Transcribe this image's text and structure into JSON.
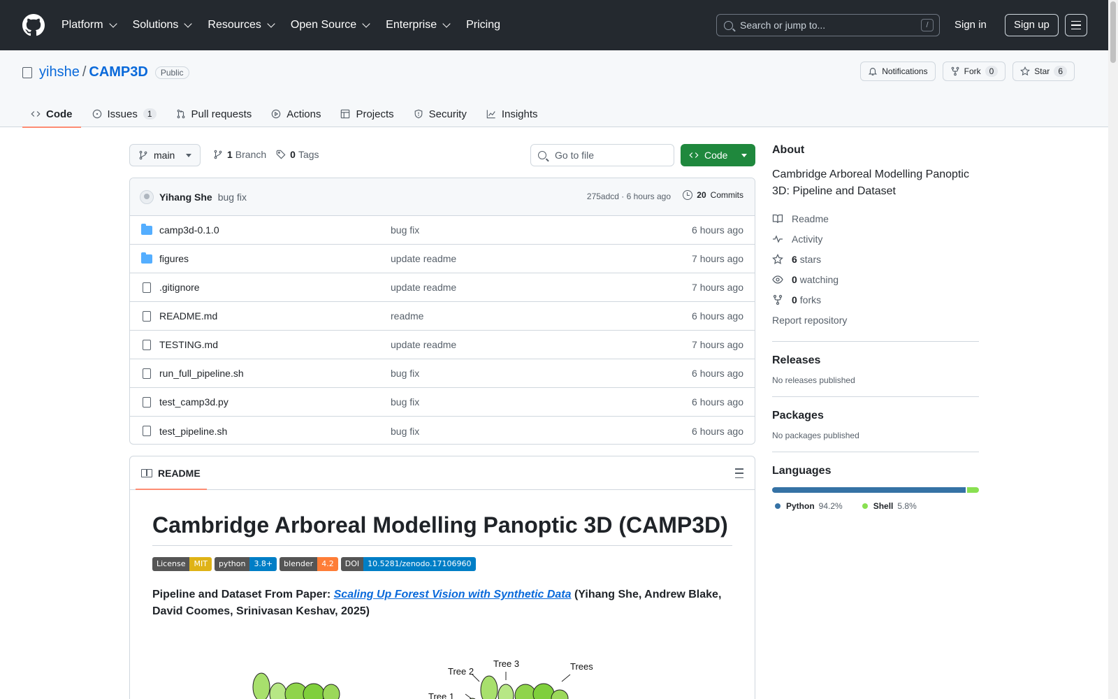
{
  "header": {
    "nav": [
      "Platform",
      "Solutions",
      "Resources",
      "Open Source",
      "Enterprise",
      "Pricing"
    ],
    "search_placeholder": "Search or jump to...",
    "search_key": "/",
    "sign_in": "Sign in",
    "sign_up": "Sign up"
  },
  "repo": {
    "owner": "yihshe",
    "separator": "/",
    "name": "CAMP3D",
    "visibility": "Public",
    "notifications": "Notifications",
    "fork_label": "Fork",
    "fork_count": "0",
    "star_label": "Star",
    "star_count": "6"
  },
  "tabs": [
    {
      "label": "Code",
      "icon": "code-icon"
    },
    {
      "label": "Issues",
      "count": "1",
      "icon": "issue-icon"
    },
    {
      "label": "Pull requests",
      "icon": "pull-request-icon"
    },
    {
      "label": "Actions",
      "icon": "play-icon"
    },
    {
      "label": "Projects",
      "icon": "table-icon"
    },
    {
      "label": "Security",
      "icon": "shield-icon"
    },
    {
      "label": "Insights",
      "icon": "graph-icon"
    }
  ],
  "toolbar": {
    "branch": "main",
    "branch_count": "1",
    "branch_label": "Branch",
    "tag_count": "0",
    "tag_label": "Tags",
    "goto_placeholder": "Go to file",
    "code_button": "Code"
  },
  "commit": {
    "author": "Yihang She",
    "message": "bug fix",
    "meta": "275adcd · 6 hours ago",
    "commits_count": "20",
    "commits_label": "Commits"
  },
  "files": [
    {
      "name": "camp3d-0.1.0",
      "type": "folder",
      "message": "bug fix",
      "time": "6 hours ago"
    },
    {
      "name": "figures",
      "type": "folder",
      "message": "update readme",
      "time": "7 hours ago"
    },
    {
      "name": ".gitignore",
      "type": "file",
      "message": "update readme",
      "time": "7 hours ago"
    },
    {
      "name": "README.md",
      "type": "file",
      "message": "readme",
      "time": "6 hours ago"
    },
    {
      "name": "TESTING.md",
      "type": "file",
      "message": "update readme",
      "time": "7 hours ago"
    },
    {
      "name": "run_full_pipeline.sh",
      "type": "file",
      "message": "bug fix",
      "time": "6 hours ago"
    },
    {
      "name": "test_camp3d.py",
      "type": "file",
      "message": "bug fix",
      "time": "6 hours ago"
    },
    {
      "name": "test_pipeline.sh",
      "type": "file",
      "message": "bug fix",
      "time": "6 hours ago"
    }
  ],
  "readme": {
    "tab_label": "README",
    "title": "Cambridge Arboreal Modelling Panoptic 3D (CAMP3D)",
    "badges": [
      {
        "left": "License",
        "right": "MIT",
        "color": "#dfb317"
      },
      {
        "left": "python",
        "right": "3.8+",
        "color": "#007ec6"
      },
      {
        "left": "blender",
        "right": "4.2",
        "color": "#fe7d37"
      },
      {
        "left": "DOI",
        "right": "10.5281/zenodo.17106960",
        "color": "#007ec6"
      }
    ],
    "paper_prefix": "Pipeline and Dataset From Paper: ",
    "paper_link": "Scaling Up Forest Vision with Synthetic Data",
    "paper_suffix": " (Yihang She, Andrew Blake, David Coomes, Srinivasan Keshav, 2025)",
    "figure_labels": [
      "Tree 2",
      "Tree 3",
      "Trees",
      "Tree 1"
    ]
  },
  "sidebar": {
    "about_title": "About",
    "description": "Cambridge Arboreal Modelling Panoptic 3D: Pipeline and Dataset",
    "readme": "Readme",
    "activity": "Activity",
    "stars_count": "6",
    "stars_label": "stars",
    "watching_count": "0",
    "watching_label": "watching",
    "forks_count": "0",
    "forks_label": "forks",
    "report": "Report repository",
    "releases_title": "Releases",
    "releases_empty": "No releases published",
    "packages_title": "Packages",
    "packages_empty": "No packages published",
    "languages_title": "Languages",
    "languages": [
      {
        "name": "Python",
        "pct": "94.2%",
        "value": 94.2,
        "color": "#3572A5"
      },
      {
        "name": "Shell",
        "pct": "5.8%",
        "value": 5.8,
        "color": "#89e051"
      }
    ]
  }
}
